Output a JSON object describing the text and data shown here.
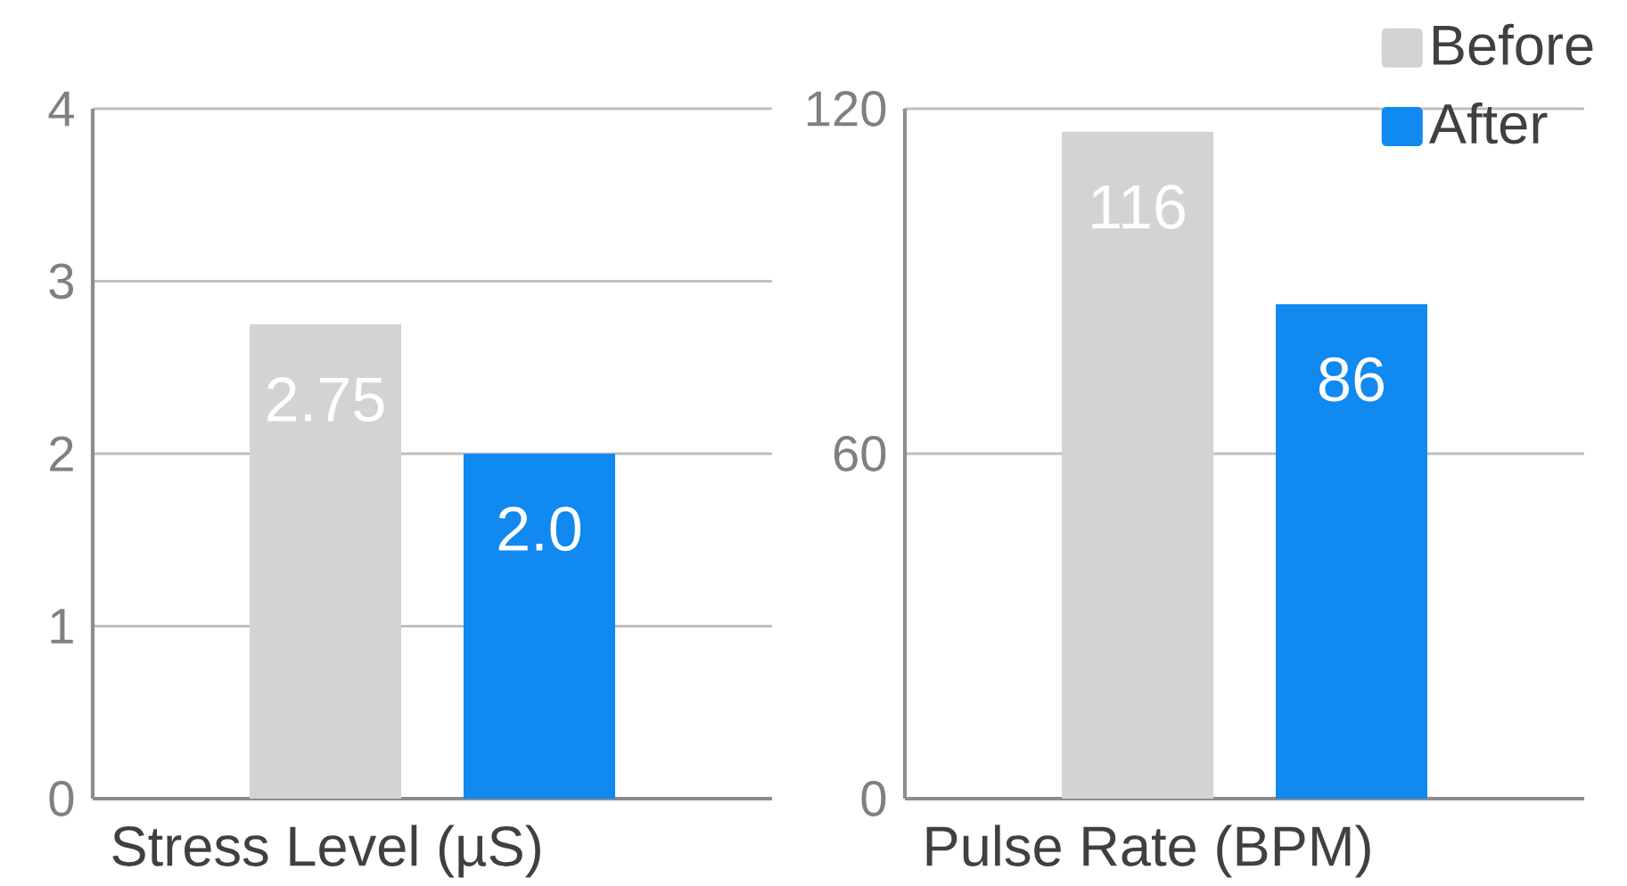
{
  "chart_data": [
    {
      "type": "bar",
      "categories": [
        null
      ],
      "xlabel": "Stress Level (µS)",
      "ylim": [
        0,
        4
      ],
      "yticks": [
        0,
        1,
        2,
        3,
        4
      ],
      "grid": "y",
      "legend": false,
      "series": [
        {
          "color": "#d3d3d3",
          "values": [
            2.75
          ],
          "value_labels": [
            "2.75"
          ]
        },
        {
          "color": "#1089f0",
          "values": [
            2.0
          ],
          "value_labels": [
            "2.0"
          ]
        }
      ]
    },
    {
      "type": "bar",
      "categories": [
        null
      ],
      "xlabel": "Pulse Rate (BPM)",
      "ylim": [
        0,
        120
      ],
      "yticks": [
        0,
        60,
        120
      ],
      "grid": "y",
      "legend": "top right",
      "series": [
        {
          "name": "Before",
          "color": "#d3d3d3",
          "values": [
            116
          ],
          "value_labels": [
            "116"
          ]
        },
        {
          "name": "After",
          "color": "#1089f0",
          "values": [
            86
          ],
          "value_labels": [
            "86"
          ]
        }
      ]
    }
  ]
}
